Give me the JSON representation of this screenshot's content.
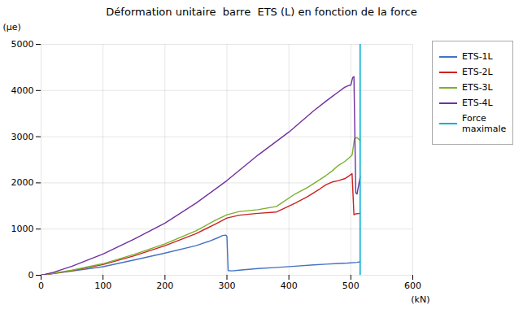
{
  "chart_data": {
    "type": "line",
    "title": "Déformation unitaire  barre  ETS (L) en fonction de la force",
    "xlabel": "(kN)",
    "ylabel": "(μe)",
    "xlim": [
      0,
      600
    ],
    "ylim": [
      0,
      5000
    ],
    "xticks": [
      0,
      100,
      200,
      300,
      400,
      500,
      600
    ],
    "yticks": [
      0,
      1000,
      2000,
      3000,
      4000,
      5000
    ],
    "grid": true,
    "legend": "right",
    "series": [
      {
        "name": "ETS-1L",
        "color": "#4472C4",
        "x": [
          0,
          5,
          20,
          50,
          100,
          150,
          200,
          250,
          270,
          285,
          293,
          298,
          300,
          302,
          308,
          320,
          350,
          380,
          410,
          440,
          460,
          480,
          495,
          510,
          515
        ],
        "values": [
          0,
          10,
          40,
          90,
          185,
          330,
          480,
          640,
          730,
          810,
          860,
          870,
          840,
          100,
          95,
          110,
          145,
          170,
          195,
          225,
          240,
          255,
          265,
          280,
          290
        ]
      },
      {
        "name": "ETS-2L",
        "color": "#CC2222",
        "x": [
          0,
          5,
          20,
          50,
          100,
          150,
          200,
          250,
          280,
          300,
          320,
          350,
          380,
          410,
          430,
          450,
          460,
          470,
          480,
          490,
          497,
          502,
          505,
          508,
          515
        ],
        "values": [
          0,
          10,
          40,
          100,
          230,
          420,
          640,
          900,
          1100,
          1240,
          1300,
          1340,
          1370,
          1560,
          1700,
          1870,
          1960,
          2020,
          2050,
          2090,
          2150,
          2200,
          1310,
          1330,
          1340
        ]
      },
      {
        "name": "ETS-3L",
        "color": "#7ab030",
        "x": [
          0,
          5,
          20,
          50,
          100,
          150,
          200,
          250,
          280,
          300,
          320,
          350,
          380,
          410,
          430,
          450,
          460,
          470,
          480,
          490,
          497,
          502,
          506,
          510,
          515
        ],
        "values": [
          0,
          10,
          45,
          110,
          250,
          450,
          680,
          960,
          1180,
          1310,
          1380,
          1420,
          1490,
          1760,
          1900,
          2070,
          2160,
          2260,
          2380,
          2460,
          2540,
          2600,
          2960,
          2980,
          2920
        ]
      },
      {
        "name": "ETS-4L",
        "color": "#7030A0",
        "x": [
          0,
          5,
          20,
          50,
          100,
          150,
          200,
          250,
          300,
          350,
          400,
          440,
          460,
          470,
          480,
          490,
          495,
          500,
          503,
          505,
          508,
          510,
          515
        ],
        "values": [
          0,
          15,
          65,
          195,
          460,
          780,
          1130,
          1560,
          2050,
          2600,
          3100,
          3560,
          3770,
          3870,
          3970,
          4070,
          4100,
          4120,
          4280,
          4300,
          1780,
          1760,
          2130
        ]
      },
      {
        "name": "Force\nmaximale",
        "color": "#00B0D0",
        "type": "vline",
        "x": 515
      }
    ]
  }
}
